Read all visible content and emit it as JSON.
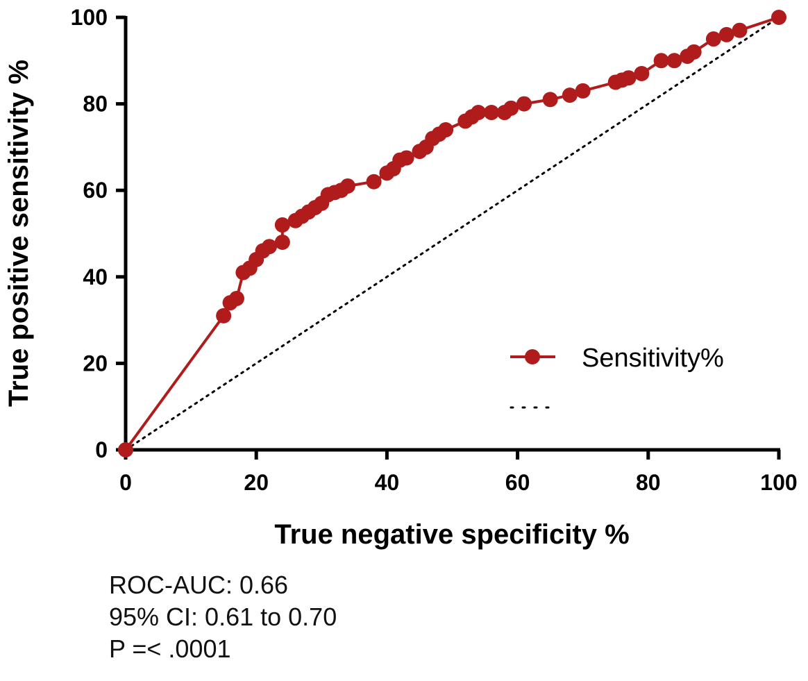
{
  "chart_data": {
    "type": "line",
    "xlabel": "True negative specificity %",
    "ylabel": "True positive sensitivity %",
    "xlim": [
      0,
      100
    ],
    "ylim": [
      0,
      100
    ],
    "x_ticks": [
      "0",
      "20",
      "40",
      "60",
      "80",
      "100"
    ],
    "y_ticks": [
      "0",
      "20",
      "40",
      "60",
      "80",
      "100"
    ],
    "grid": false,
    "legend_position": "bottom-right",
    "series": [
      {
        "name": "Sensitivity%",
        "color": "#b01c1c",
        "style": "solid line with filled circle markers",
        "points": [
          [
            0,
            0
          ],
          [
            15,
            31
          ],
          [
            16,
            34
          ],
          [
            17,
            35
          ],
          [
            18,
            41
          ],
          [
            19,
            42
          ],
          [
            20,
            44
          ],
          [
            21,
            46
          ],
          [
            22,
            47
          ],
          [
            24,
            48
          ],
          [
            24,
            52
          ],
          [
            26,
            53
          ],
          [
            27,
            54
          ],
          [
            28,
            55
          ],
          [
            29,
            56
          ],
          [
            30,
            57
          ],
          [
            31,
            59
          ],
          [
            32,
            59.5
          ],
          [
            33,
            60
          ],
          [
            34,
            61
          ],
          [
            38,
            62
          ],
          [
            40,
            64
          ],
          [
            41,
            65
          ],
          [
            42,
            67
          ],
          [
            43,
            67.5
          ],
          [
            45,
            69
          ],
          [
            46,
            70
          ],
          [
            47,
            72
          ],
          [
            48,
            73
          ],
          [
            49,
            74
          ],
          [
            52,
            76
          ],
          [
            53,
            77
          ],
          [
            54,
            78
          ],
          [
            56,
            78
          ],
          [
            58,
            78
          ],
          [
            59,
            79
          ],
          [
            61,
            80
          ],
          [
            65,
            81
          ],
          [
            68,
            82
          ],
          [
            70,
            83
          ],
          [
            75,
            85
          ],
          [
            76,
            85.5
          ],
          [
            77,
            86
          ],
          [
            79,
            87
          ],
          [
            82,
            90
          ],
          [
            84,
            90
          ],
          [
            86,
            91
          ],
          [
            87,
            92
          ],
          [
            90,
            95
          ],
          [
            92,
            96
          ],
          [
            94,
            97
          ],
          [
            100,
            100
          ]
        ]
      },
      {
        "name": "",
        "color": "#000000",
        "style": "dotted reference line",
        "points": [
          [
            0,
            0
          ],
          [
            100,
            100
          ]
        ]
      }
    ]
  },
  "annotations": {
    "auc": "ROC-AUC: 0.66",
    "ci": "95% CI: 0.61 to 0.70",
    "p": "P =< .0001"
  }
}
